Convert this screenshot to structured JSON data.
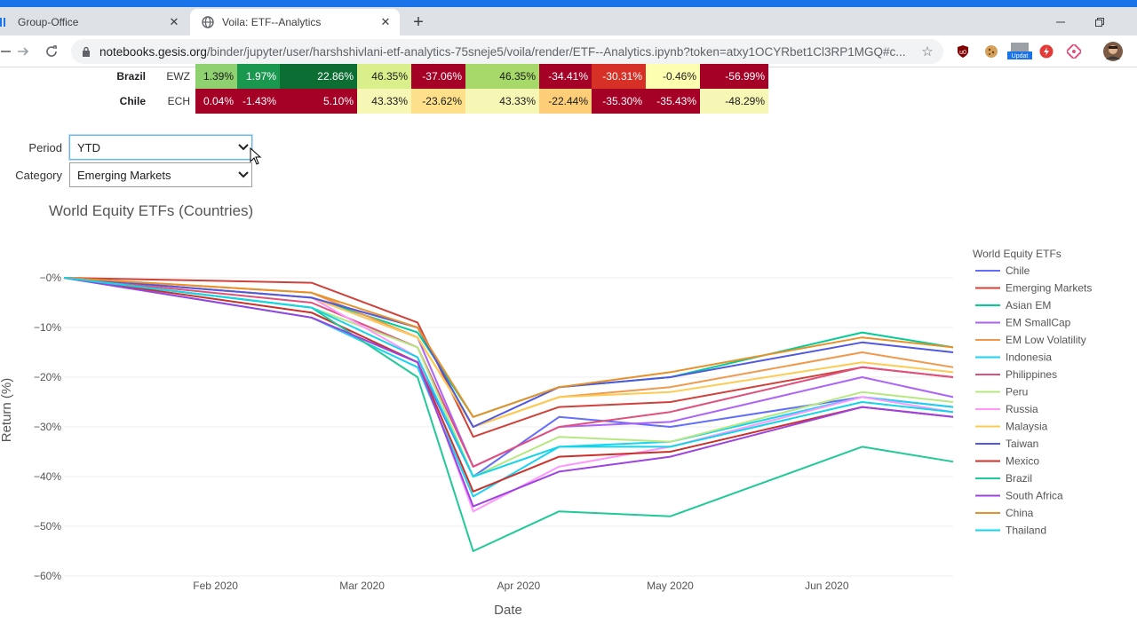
{
  "browser": {
    "tabs": [
      {
        "title": "Group-Office",
        "close": "✕"
      },
      {
        "title": "Voila: ETF--Analytics",
        "close": "✕"
      }
    ],
    "new_tab": "+",
    "url_host": "notebooks.gesis.org",
    "url_path": "/binder/jupyter/user/harshshivlani-etf-analytics-75sneje5/voila/render/ETF--Analytics.ipynb?token=atxy1OCYRbet1Cl3RP1MGQ#c...",
    "ext_badge": "Updat"
  },
  "table": {
    "rows": [
      {
        "country": "Brazil",
        "ticker": "EWZ",
        "cells": [
          {
            "v": "1.39%",
            "bg": "#8fd070",
            "fg": "#1a1a1a",
            "w": 47
          },
          {
            "v": "1.97%",
            "bg": "#1a9850",
            "fg": "#ffffff",
            "w": 48
          },
          {
            "v": "22.86%",
            "bg": "#0d6e34",
            "fg": "#ffffff",
            "w": 87
          },
          {
            "v": "46.35%",
            "bg": "#d9ef8b",
            "fg": "#1a1a1a",
            "w": 61
          },
          {
            "v": "-37.06%",
            "bg": "#a50026",
            "fg": "#ffffff",
            "w": 61
          },
          {
            "v": "46.35%",
            "bg": "#a6d96a",
            "fg": "#1a1a1a",
            "w": 83
          },
          {
            "v": "-34.41%",
            "bg": "#a50026",
            "fg": "#ffffff",
            "w": 59
          },
          {
            "v": "-30.31%",
            "bg": "#d73027",
            "fg": "#ffffff",
            "w": 61
          },
          {
            "v": "-0.46%",
            "bg": "#fefeb0",
            "fg": "#1a1a1a",
            "w": 61
          },
          {
            "v": "-56.99%",
            "bg": "#a50026",
            "fg": "#ffffff",
            "w": 77
          }
        ]
      },
      {
        "country": "Chile",
        "ticker": "ECH",
        "cells": [
          {
            "v": "0.04%",
            "bg": "#a50026",
            "fg": "#ffffff",
            "w": 47
          },
          {
            "v": "-1.43%",
            "bg": "#a50026",
            "fg": "#ffffff",
            "w": 48
          },
          {
            "v": "5.10%",
            "bg": "#a50026",
            "fg": "#ffffff",
            "w": 87
          },
          {
            "v": "43.33%",
            "bg": "#f6f7b5",
            "fg": "#1a1a1a",
            "w": 61
          },
          {
            "v": "-23.62%",
            "bg": "#fee08b",
            "fg": "#1a1a1a",
            "w": 61
          },
          {
            "v": "43.33%",
            "bg": "#f6f7b5",
            "fg": "#1a1a1a",
            "w": 83
          },
          {
            "v": "-22.44%",
            "bg": "#fdcd78",
            "fg": "#1a1a1a",
            "w": 59
          },
          {
            "v": "-35.30%",
            "bg": "#a50026",
            "fg": "#ffffff",
            "w": 61
          },
          {
            "v": "-35.43%",
            "bg": "#a50026",
            "fg": "#ffffff",
            "w": 61
          },
          {
            "v": "-48.29%",
            "bg": "#f6f7b5",
            "fg": "#1a1a1a",
            "w": 77
          }
        ]
      }
    ]
  },
  "controls": {
    "period_label": "Period",
    "period_value": "YTD",
    "category_label": "Category",
    "category_value": "Emerging Markets"
  },
  "chart_data": {
    "type": "line",
    "title": "World Equity ETFs (Countries)",
    "xlabel": "Date",
    "ylabel": "Return (%)",
    "x_ticks": [
      "Feb 2020",
      "Mar 2020",
      "Apr 2020",
      "May 2020",
      "Jun 2020"
    ],
    "y_ticks": [
      "−0%",
      "−10%",
      "−20%",
      "−30%",
      "−40%",
      "−50%",
      "−60%"
    ],
    "ylim": [
      -61,
      4
    ],
    "legend_title": "World Equity ETFs",
    "legend_position": "right",
    "keys": [
      "2020-01-02",
      "2020-02-20",
      "2020-03-12",
      "2020-03-23",
      "2020-04-09",
      "2020-05-01",
      "2020-06-08",
      "2020-06-26"
    ],
    "series": [
      {
        "name": "Chile",
        "color": "#636efa",
        "values": [
          0,
          -8,
          -17,
          -40,
          -28,
          -30,
          -24,
          -26
        ]
      },
      {
        "name": "Emerging Markets",
        "color": "#d0413a",
        "values": [
          0,
          -1,
          -9,
          -32,
          -26,
          -25,
          -18,
          -20
        ]
      },
      {
        "name": "Asian EM",
        "color": "#00cc96",
        "values": [
          0,
          -4,
          -11,
          -28,
          -22,
          -20,
          -11,
          -14
        ]
      },
      {
        "name": "EM SmallCap",
        "color": "#ab63fa",
        "values": [
          0,
          -4,
          -12,
          -38,
          -30,
          -29,
          -20,
          -24
        ]
      },
      {
        "name": "EM Low Volatility",
        "color": "#f0994c",
        "values": [
          0,
          -3,
          -12,
          -30,
          -24,
          -22,
          -15,
          -18
        ]
      },
      {
        "name": "Indonesia",
        "color": "#19d3f3",
        "values": [
          0,
          -8,
          -18,
          -44,
          -34,
          -33,
          -24,
          -26
        ]
      },
      {
        "name": "Philippines",
        "color": "#e0507d",
        "values": [
          0,
          -5,
          -14,
          -38,
          -30,
          -27,
          -18,
          -20
        ]
      },
      {
        "name": "Peru",
        "color": "#b6e880",
        "values": [
          0,
          -6,
          -14,
          -40,
          -32,
          -33,
          -23,
          -25
        ]
      },
      {
        "name": "Russia",
        "color": "#ff97ff",
        "values": [
          0,
          -4,
          -16,
          -47,
          -38,
          -34,
          -24,
          -27
        ]
      },
      {
        "name": "Malaysia",
        "color": "#fecb52",
        "values": [
          0,
          -4,
          -12,
          -30,
          -24,
          -23,
          -17,
          -19
        ]
      },
      {
        "name": "Taiwan",
        "color": "#5058e0",
        "values": [
          0,
          -4,
          -10,
          -30,
          -22,
          -20,
          -13,
          -15
        ]
      },
      {
        "name": "Mexico",
        "color": "#c9312a",
        "values": [
          0,
          -7,
          -17,
          -43,
          -36,
          -35,
          -26,
          -28
        ]
      },
      {
        "name": "Brazil",
        "color": "#20c997",
        "values": [
          0,
          -6,
          -20,
          -55,
          -47,
          -48,
          -34,
          -37
        ]
      },
      {
        "name": "South Africa",
        "color": "#9d44e0",
        "values": [
          0,
          -8,
          -17,
          -46,
          -39,
          -36,
          -26,
          -28
        ]
      },
      {
        "name": "China",
        "color": "#e8902a",
        "values": [
          0,
          -3,
          -10,
          -28,
          -22,
          -19,
          -12,
          -14
        ]
      },
      {
        "name": "Thailand",
        "color": "#12d5e8",
        "values": [
          0,
          -6,
          -16,
          -40,
          -34,
          -34,
          -25,
          -27
        ]
      }
    ]
  }
}
